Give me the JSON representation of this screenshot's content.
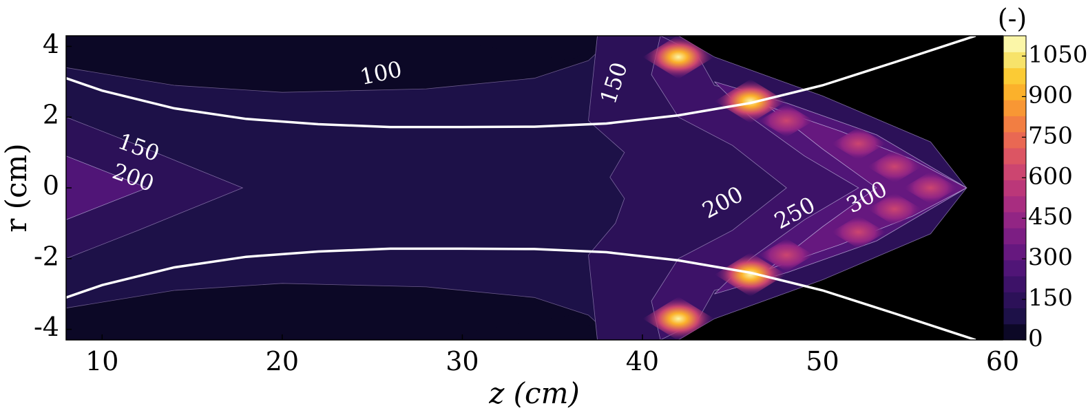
{
  "chart_data": {
    "type": "heatmap",
    "title": "",
    "xlabel": "z (cm)",
    "ylabel": "r (cm)",
    "xlim": [
      8,
      60
    ],
    "ylim": [
      -4.3,
      4.3
    ],
    "x_ticks": [
      10,
      20,
      30,
      40,
      50,
      60
    ],
    "y_ticks": [
      4,
      2,
      0,
      -2,
      -4
    ],
    "x_tick_labels": [
      "10",
      "20",
      "30",
      "40",
      "50",
      "60"
    ],
    "y_tick_labels": [
      "4",
      "2",
      "0",
      "-2",
      "-4"
    ],
    "colorbar": {
      "unit_label": "(-)",
      "range": [
        0,
        1125
      ],
      "ticks": [
        0,
        150,
        300,
        450,
        600,
        750,
        900,
        1050
      ],
      "tick_labels": [
        "0",
        "150",
        "300",
        "450",
        "600",
        "750",
        "900",
        "1050"
      ],
      "colormap": "inferno/plasma-like",
      "colors": [
        "#0c0826",
        "#1d1148",
        "#2c1158",
        "#3d1268",
        "#501577",
        "#66187f",
        "#7c1e83",
        "#922584",
        "#a82d80",
        "#bb3779",
        "#cc4570",
        "#dc5563",
        "#e96853",
        "#f27e42",
        "#f89734",
        "#fbb12b",
        "#fbcb35",
        "#f7e36a",
        "#fbf6a8"
      ]
    },
    "contour_labels": [
      {
        "value": "100",
        "z": 25.5,
        "r": 3.2,
        "angle": -12
      },
      {
        "value": "150",
        "z": 38.5,
        "r": 2.95,
        "angle": -72
      },
      {
        "value": "150",
        "z": 12.0,
        "r": 1.1,
        "angle": 20
      },
      {
        "value": "200",
        "z": 11.7,
        "r": 0.25,
        "angle": 20
      },
      {
        "value": "200",
        "z": 44.5,
        "r": -0.45,
        "angle": -28
      },
      {
        "value": "250",
        "z": 48.5,
        "r": -0.75,
        "angle": -28
      },
      {
        "value": "300",
        "z": 52.5,
        "r": -0.3,
        "angle": -28
      }
    ],
    "hot_spots": [
      {
        "z": 42.0,
        "r": 3.7,
        "value": 1100
      },
      {
        "z": 42.0,
        "r": -3.7,
        "value": 1100
      },
      {
        "z": 46.0,
        "r": 2.45,
        "value": 850
      },
      {
        "z": 46.0,
        "r": -2.45,
        "value": 850
      },
      {
        "z": 48.0,
        "r": 1.9,
        "value": 480
      },
      {
        "z": 48.0,
        "r": -1.9,
        "value": 480
      },
      {
        "z": 52.0,
        "r": 1.25,
        "value": 520
      },
      {
        "z": 52.0,
        "r": -1.25,
        "value": 520
      },
      {
        "z": 54.0,
        "r": 0.6,
        "value": 440
      },
      {
        "z": 54.0,
        "r": -0.6,
        "value": 440
      },
      {
        "z": 56.0,
        "r": 0.0,
        "value": 460
      }
    ],
    "boundary_curve": {
      "description": "white wall profile r = ±r_w(z)",
      "z": [
        8,
        10,
        14,
        18,
        22,
        26,
        30,
        34,
        38,
        42,
        46,
        50,
        54,
        58.5
      ],
      "r": [
        3.1,
        2.75,
        2.25,
        1.95,
        1.8,
        1.72,
        1.72,
        1.73,
        1.82,
        2.05,
        2.4,
        2.9,
        3.55,
        4.3
      ]
    }
  }
}
